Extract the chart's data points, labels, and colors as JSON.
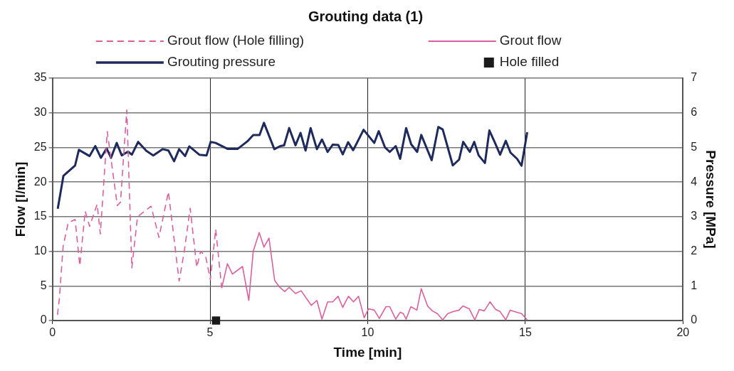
{
  "chart_data": {
    "type": "line",
    "title": "Grouting data (1)",
    "xlabel": "Time [min]",
    "ylabel": "Flow [l/min]",
    "y2label": "Pressure [MPa]",
    "xlim": [
      0,
      20
    ],
    "xticks": [
      0,
      5,
      10,
      15,
      20
    ],
    "ylim": [
      0,
      35
    ],
    "yticks": [
      0,
      5,
      10,
      15,
      20,
      25,
      30,
      35
    ],
    "y2lim": [
      0,
      7
    ],
    "y2ticks": [
      0,
      1,
      2,
      3,
      4,
      5,
      6,
      7
    ],
    "grid": true,
    "legend": "top",
    "marker": "none",
    "series": [
      {
        "name": "Grout flow (Hole filling)",
        "color": "#d9609f",
        "line_style": "dashed",
        "x": [
          0.16,
          0.22,
          0.34,
          0.5,
          0.72,
          0.87,
          1.04,
          1.18,
          1.42,
          1.52,
          1.74,
          2.06,
          2.16,
          2.36,
          2.52,
          2.7,
          3.13,
          3.38,
          3.68,
          4.02,
          4.18,
          4.37,
          4.58,
          4.7,
          4.86,
          5.01,
          5.18,
          5.37
        ],
        "values": [
          0.8,
          3.1,
          10.7,
          14.1,
          14.6,
          7.9,
          15.8,
          13.6,
          16.8,
          12.5,
          27.3,
          16.6,
          17.1,
          30.4,
          7.6,
          15.0,
          16.5,
          12.0,
          18.6,
          5.7,
          9.9,
          16.2,
          7.7,
          10.0,
          9.3,
          5.9,
          13.2,
          4.7
        ]
      },
      {
        "name": "Grout flow",
        "color": "#d9609f",
        "line_style": "solid",
        "x": [
          5.37,
          5.55,
          5.71,
          6.03,
          6.23,
          6.37,
          6.56,
          6.71,
          6.87,
          7.05,
          7.21,
          7.37,
          7.51,
          7.71,
          7.89,
          8.21,
          8.39,
          8.55,
          8.73,
          8.89,
          9.06,
          9.21,
          9.39,
          9.55,
          9.71,
          9.89,
          10.03,
          10.21,
          10.37,
          10.58,
          10.7,
          10.89,
          11.03,
          11.13,
          11.22,
          11.37,
          11.56,
          11.7,
          11.9,
          12.05,
          12.21,
          12.38,
          12.54,
          12.72,
          12.9,
          13.02,
          13.22,
          13.4,
          13.54,
          13.7,
          13.88,
          14.06,
          14.2,
          14.38,
          14.52,
          14.72,
          14.88,
          15.06
        ],
        "values": [
          4.7,
          8.2,
          6.7,
          7.8,
          2.9,
          10.0,
          12.7,
          10.6,
          11.9,
          5.8,
          4.8,
          4.2,
          4.8,
          3.9,
          4.3,
          2.2,
          2.9,
          0.2,
          2.7,
          2.7,
          3.5,
          1.9,
          3.5,
          2.7,
          3.5,
          0.4,
          1.7,
          1.5,
          0.3,
          2.0,
          2.0,
          0.2,
          1.2,
          1.0,
          0.2,
          2.0,
          1.5,
          4.6,
          2.1,
          1.4,
          1.0,
          0.1,
          1.0,
          1.3,
          1.5,
          2.1,
          1.7,
          0.1,
          1.6,
          1.4,
          2.7,
          1.6,
          1.3,
          0.1,
          1.5,
          1.2,
          1.0,
          0.1
        ]
      },
      {
        "name": "Grouting pressure",
        "color": "#1f2a5c",
        "line_style": "solid",
        "axis": "y2",
        "x": [
          0.17,
          0.35,
          0.72,
          0.84,
          1.18,
          1.36,
          1.54,
          1.72,
          1.86,
          2.04,
          2.2,
          2.4,
          2.52,
          2.72,
          2.98,
          3.2,
          3.5,
          3.68,
          3.86,
          4.02,
          4.21,
          4.34,
          4.66,
          4.89,
          5.02,
          5.18,
          5.55,
          5.88,
          6.19,
          6.37,
          6.57,
          6.71,
          7.04,
          7.23,
          7.35,
          7.51,
          7.71,
          7.87,
          8.03,
          8.19,
          8.39,
          8.55,
          8.73,
          8.89,
          9.07,
          9.21,
          9.38,
          9.54,
          9.87,
          10.21,
          10.35,
          10.55,
          10.7,
          10.89,
          11.03,
          11.22,
          11.38,
          11.57,
          11.7,
          12.03,
          12.24,
          12.38,
          12.7,
          12.9,
          13.03,
          13.24,
          13.38,
          13.52,
          13.72,
          13.86,
          14.04,
          14.2,
          14.38,
          14.53,
          14.74,
          14.88,
          15.06
        ],
        "values": [
          3.23,
          4.18,
          4.48,
          4.93,
          4.75,
          5.04,
          4.7,
          4.97,
          4.7,
          5.13,
          4.77,
          4.88,
          4.79,
          5.16,
          4.9,
          4.77,
          4.95,
          4.91,
          4.6,
          4.95,
          4.75,
          5.03,
          4.79,
          4.77,
          5.16,
          5.13,
          4.96,
          4.96,
          5.18,
          5.36,
          5.36,
          5.71,
          4.95,
          5.04,
          5.06,
          5.56,
          5.06,
          5.42,
          4.91,
          5.56,
          4.95,
          5.23,
          4.87,
          5.08,
          5.07,
          4.8,
          5.15,
          4.92,
          5.51,
          5.13,
          5.47,
          5.0,
          4.87,
          5.04,
          4.67,
          5.56,
          5.09,
          4.87,
          5.36,
          4.63,
          5.59,
          5.52,
          4.48,
          4.65,
          5.16,
          4.87,
          5.16,
          4.77,
          4.55,
          5.49,
          5.13,
          4.79,
          5.19,
          4.85,
          4.67,
          4.47,
          5.44
        ]
      },
      {
        "name": "Hole filled",
        "type": "scatter",
        "color": "#1a1a1a",
        "marker": "square",
        "x": [
          5.19
        ],
        "values": [
          0
        ]
      }
    ]
  }
}
